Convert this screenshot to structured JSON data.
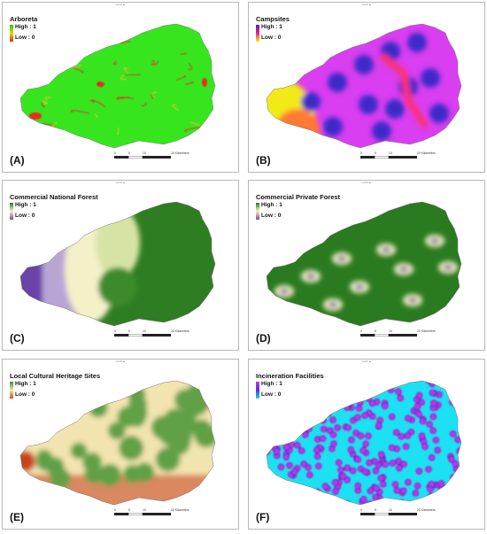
{
  "north_label": "north ▲",
  "scale_ticks": [
    "0",
    "5",
    "10",
    "20 Kilometers"
  ],
  "panels": [
    {
      "title": "Arboreta",
      "high": "High : 1",
      "low": "Low : 0",
      "label": "(A)",
      "legend_colors": [
        "#22c31d",
        "#d6e000",
        "#d63412"
      ],
      "map_colors": {
        "base": "#36e51e",
        "accent": "#ef2b1f",
        "mid": "#f0c52b"
      }
    },
    {
      "title": "Campsites",
      "high": "High : 1",
      "low": "Low : 0",
      "label": "(B)",
      "legend_colors": [
        "#5a22b0",
        "#e0269c",
        "#f3f100"
      ],
      "map_colors": {
        "base": "#d93ef0",
        "accent": "#3a2cc8",
        "mid": "#f1ea12"
      }
    },
    {
      "title": "Commercial National Forest",
      "high": "High : 1",
      "low": "Low : 0",
      "label": "(C)",
      "legend_colors": [
        "#237b1d",
        "#f5f3c2",
        "#7c4aa6"
      ],
      "map_colors": {
        "base": "#2f7d22",
        "accent": "#6b43a8",
        "mid": "#f4f0c8"
      }
    },
    {
      "title": "Commercial Private Forest",
      "high": "High : 1",
      "low": "Low : 0",
      "label": "(D)",
      "legend_colors": [
        "#237b1d",
        "#f5f3c2",
        "#7c4aa6"
      ],
      "map_colors": {
        "base": "#2a7a1f",
        "accent": "#6d44a8",
        "mid": "#f4f0c6"
      }
    },
    {
      "title": "Local Cultural Heritage Sites",
      "high": "High : 1",
      "low": "Low : 0",
      "label": "(E)",
      "legend_colors": [
        "#3e8d2a",
        "#f3e9b4",
        "#d3461e"
      ],
      "map_colors": {
        "base": "#61a047",
        "accent": "#c8421c",
        "mid": "#f2e4ae"
      }
    },
    {
      "title": "Incineration Facilities",
      "high": "High : 1",
      "low": "Low : 0",
      "label": "(F)",
      "legend_colors": [
        "#c535e6",
        "#4e39d1",
        "#1bd3f2"
      ],
      "map_colors": {
        "base": "#b437e6",
        "accent": "#1ee1f2",
        "mid": "#4b2cc8"
      }
    }
  ]
}
